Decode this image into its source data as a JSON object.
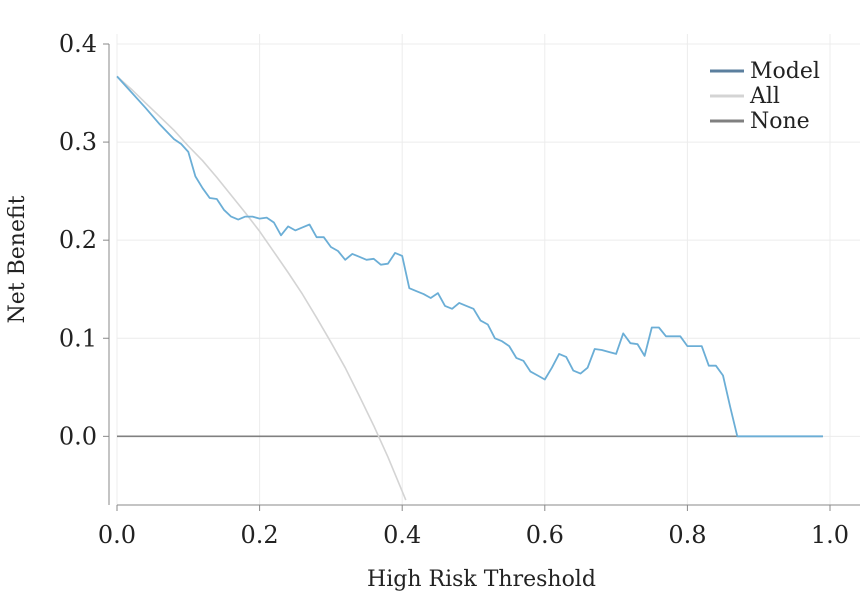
{
  "chart_data": {
    "type": "line",
    "title": "",
    "xlabel": "High Risk Threshold",
    "ylabel": "Net Benefit",
    "xlim": [
      0.0,
      1.0
    ],
    "ylim": [
      -0.07,
      0.4
    ],
    "x_ticks": [
      "0.0",
      "0.2",
      "0.4",
      "0.6",
      "0.8",
      "1.0"
    ],
    "y_ticks": [
      "0.0",
      "0.1",
      "0.2",
      "0.3",
      "0.4"
    ],
    "grid": true,
    "legend_position": "top-right",
    "series": [
      {
        "name": "Model",
        "color": "#6baed6",
        "x": [
          0.0,
          0.02,
          0.04,
          0.06,
          0.08,
          0.09,
          0.1,
          0.11,
          0.12,
          0.13,
          0.14,
          0.15,
          0.16,
          0.17,
          0.18,
          0.19,
          0.2,
          0.21,
          0.22,
          0.23,
          0.24,
          0.25,
          0.26,
          0.27,
          0.28,
          0.29,
          0.3,
          0.31,
          0.32,
          0.33,
          0.34,
          0.35,
          0.36,
          0.37,
          0.38,
          0.39,
          0.4,
          0.41,
          0.42,
          0.43,
          0.44,
          0.45,
          0.46,
          0.47,
          0.48,
          0.49,
          0.5,
          0.51,
          0.52,
          0.53,
          0.54,
          0.55,
          0.56,
          0.57,
          0.58,
          0.59,
          0.6,
          0.61,
          0.62,
          0.63,
          0.64,
          0.65,
          0.66,
          0.67,
          0.68,
          0.69,
          0.7,
          0.71,
          0.72,
          0.73,
          0.74,
          0.75,
          0.76,
          0.77,
          0.78,
          0.79,
          0.8,
          0.81,
          0.82,
          0.83,
          0.84,
          0.85,
          0.86,
          0.87,
          0.875,
          0.88,
          0.9,
          0.92,
          0.94,
          0.96,
          0.98,
          0.99
        ],
        "y": [
          0.367,
          0.351,
          0.335,
          0.318,
          0.303,
          0.298,
          0.29,
          0.265,
          0.253,
          0.243,
          0.242,
          0.231,
          0.224,
          0.221,
          0.224,
          0.224,
          0.222,
          0.223,
          0.218,
          0.205,
          0.214,
          0.21,
          0.213,
          0.216,
          0.203,
          0.203,
          0.193,
          0.189,
          0.18,
          0.186,
          0.183,
          0.18,
          0.181,
          0.175,
          0.176,
          0.187,
          0.184,
          0.151,
          0.148,
          0.145,
          0.141,
          0.146,
          0.133,
          0.13,
          0.136,
          0.133,
          0.13,
          0.118,
          0.114,
          0.1,
          0.097,
          0.092,
          0.08,
          0.077,
          0.066,
          0.062,
          0.058,
          0.07,
          0.084,
          0.081,
          0.067,
          0.064,
          0.07,
          0.089,
          0.088,
          0.086,
          0.084,
          0.105,
          0.095,
          0.094,
          0.082,
          0.111,
          0.111,
          0.102,
          0.102,
          0.102,
          0.092,
          0.092,
          0.092,
          0.072,
          0.072,
          0.062,
          0.03,
          0.0,
          0.0,
          0.0,
          0.0,
          0.0,
          0.0,
          0.0,
          0.0,
          0.0
        ]
      },
      {
        "name": "All",
        "color": "#d4d4d4",
        "x": [
          0.0,
          0.02,
          0.04,
          0.06,
          0.08,
          0.1,
          0.12,
          0.14,
          0.16,
          0.18,
          0.2,
          0.22,
          0.24,
          0.26,
          0.28,
          0.3,
          0.32,
          0.34,
          0.36,
          0.38,
          0.4,
          0.405
        ],
        "y": [
          0.367,
          0.354,
          0.34,
          0.326,
          0.312,
          0.296,
          0.281,
          0.264,
          0.246,
          0.228,
          0.209,
          0.188,
          0.167,
          0.145,
          0.121,
          0.096,
          0.07,
          0.041,
          0.011,
          -0.021,
          -0.056,
          -0.065
        ]
      },
      {
        "name": "None",
        "color": "#808080",
        "x": [
          0.0,
          0.99
        ],
        "y": [
          0.0,
          0.0
        ]
      }
    ]
  }
}
